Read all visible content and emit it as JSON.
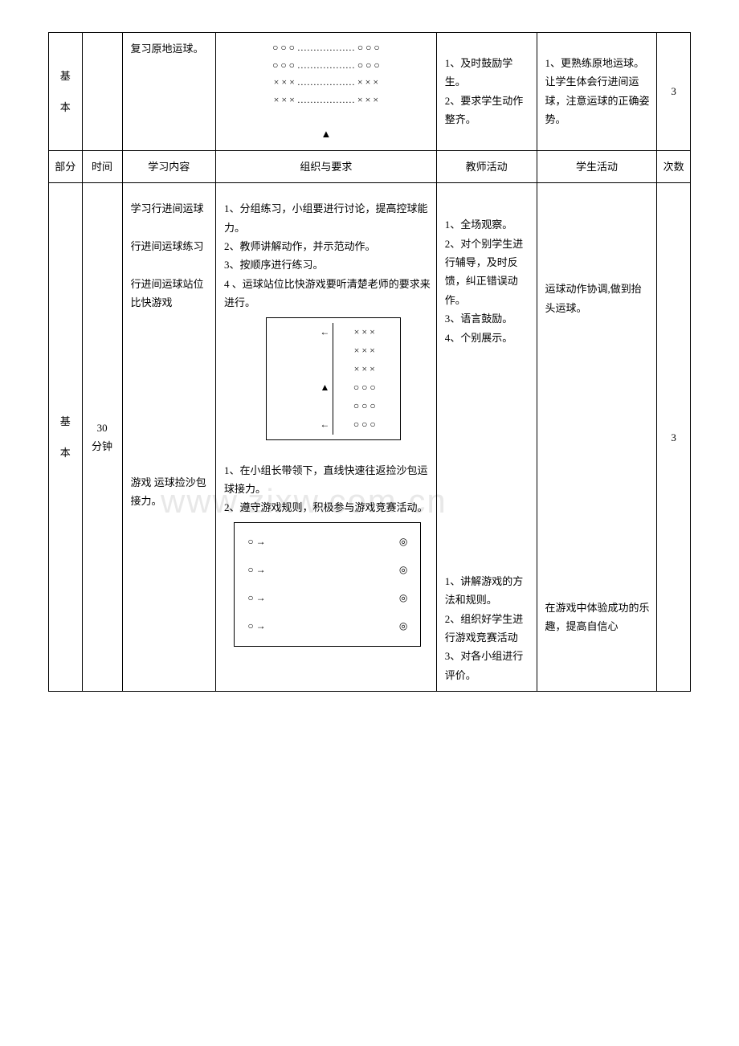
{
  "watermark": "www.zixw.com.cn",
  "row1": {
    "part": "基\n本",
    "time": "",
    "content": "复习原地运球。",
    "org_lines": "○ ○ ○ ……………… ○ ○ ○\n○ ○ ○ ……………… ○ ○ ○\n× × × ……………… × × ×\n× × × ……………… × × ×",
    "org_symbol": "▲",
    "teacher": "1、及时鼓励学生。\n2、要求学生动作整齐。",
    "student": "1、更熟练原地运球。\n让学生体会行进间运球，注意运球的正确姿势。",
    "count": "3"
  },
  "header": {
    "part": "部分",
    "time": "时间",
    "content": "学习内容",
    "org": "组织与要求",
    "teacher": "教师活动",
    "student": "学生活动",
    "count": "次数"
  },
  "row2": {
    "part": "基\n本",
    "time": "30\n分钟",
    "content_a": "学习行进间运球\n\n行进间运球练习\n\n行进间运球站位比快游戏",
    "content_b": "游戏 运球捡沙包接力。",
    "org_a_text": "1、分组练习，小组要进行讨论，提高控球能力。\n2、教师讲解动作，并示范动作。\n3、按顺序进行练习。\n4 、运球站位比快游戏要听清楚老师的要求来进行。",
    "diagram_a": {
      "rows": [
        {
          "left": "←",
          "right": "× × ×"
        },
        {
          "left": "",
          "right": "× × ×"
        },
        {
          "left": "",
          "right": "× × ×"
        },
        {
          "left": "▲",
          "right": "○ ○ ○"
        },
        {
          "left": "",
          "right": "○ ○ ○"
        },
        {
          "left": "←",
          "right": "○ ○ ○"
        }
      ]
    },
    "org_b_text": "1、在小组长带领下，直线快速往返捡沙包运球接力。\n2、遵守游戏规则，积极参与游戏竞赛活动。",
    "diagram_b": {
      "rows": [
        {
          "left": "○ →",
          "right": "◎"
        },
        {
          "left": "○ →",
          "right": "◎"
        },
        {
          "left": "○ →",
          "right": "◎"
        },
        {
          "left": "○ →",
          "right": "◎"
        }
      ]
    },
    "teacher_a": "1、全场观察。\n2、对个别学生进行辅导，及时反馈，纠正错误动作。\n3、语言鼓励。\n4、个别展示。",
    "teacher_b": "1、讲解游戏的方法和规则。\n2、组织好学生进行游戏竞赛活动\n3、对各小组进行评价。",
    "student_a": "运球动作协调,做到抬头运球。",
    "student_b": "在游戏中体验成功的乐趣，提高自信心",
    "count": "3"
  }
}
